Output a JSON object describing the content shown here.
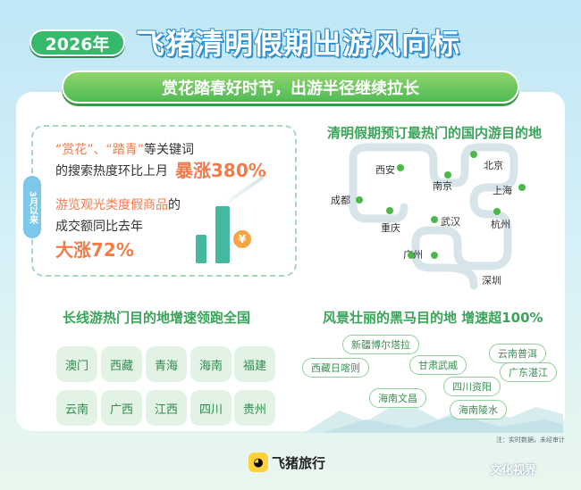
{
  "header": {
    "year": "2026年",
    "title": "飞猪清明假期出游风向标",
    "subtitle": "赏花踏春好时节，出游半径继续拉长"
  },
  "stats": {
    "tag": "3月以来",
    "line1_quote": "“赏花”、“踏青”",
    "line1_rest": "等关键词",
    "line2": "的搜索热度环比上月",
    "line2_big": "暴涨380%",
    "line3_hl": "游览观光类度假商品",
    "line3_rest": "的",
    "line4": "成交额同比去年",
    "line5_big": "大涨72%",
    "coin_symbol": "¥"
  },
  "domestic": {
    "title": "清明假期预订最热门的国内游目的地",
    "cities": [
      "西安",
      "北京",
      "成都",
      "南京",
      "上海",
      "重庆",
      "武汉",
      "杭州",
      "广州",
      "深圳"
    ]
  },
  "longhaul": {
    "title": "长线游热门目的地增速领跑全国",
    "provinces": [
      "澳门",
      "西藏",
      "青海",
      "海南",
      "福建",
      "云南",
      "广西",
      "江西",
      "四川",
      "贵州"
    ]
  },
  "darkhorse": {
    "title": "风景壮丽的黑马目的地 增速超100%",
    "places": [
      "新疆博尔塔拉",
      "云南普洱",
      "西藏日喀则",
      "甘肃武威",
      "广东湛江",
      "四川资阳",
      "海南文昌",
      "海南陵水"
    ]
  },
  "footer": {
    "brand": "飞猪旅行",
    "note": "注：实时数据，未经审计",
    "watermark": "文化视界"
  },
  "colors": {
    "accent_green": "#3aa55a",
    "highlight_orange": "#f27b4a",
    "title_blue": "#2e8fd1"
  }
}
